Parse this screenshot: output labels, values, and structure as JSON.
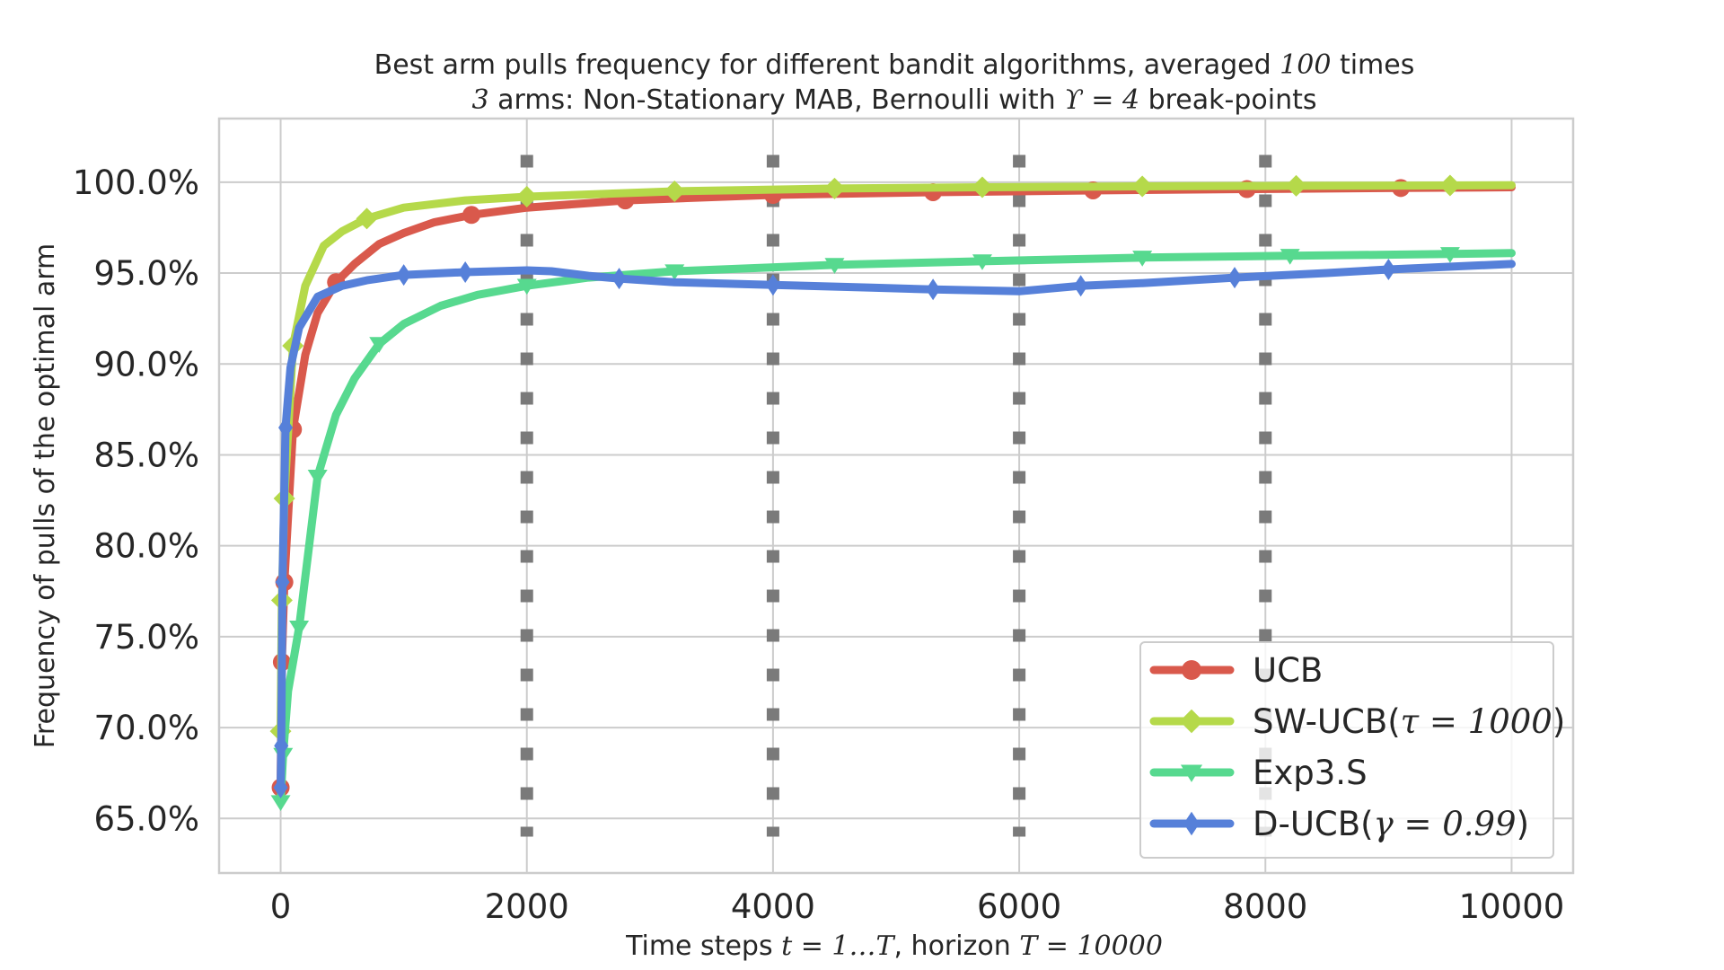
{
  "chart_data": {
    "type": "line",
    "title_line1": {
      "before": "Best arm pulls frequency for different bandit algorithms, averaged ",
      "math": "100",
      "after": " times"
    },
    "title_line2": {
      "math1": "3",
      "middle": " arms: Non-Stationary MAB, Bernoulli with ",
      "math2": "ϒ = 4",
      "after": " break-points"
    },
    "xlabel": {
      "before": "Time steps ",
      "math1": "t = 1…T",
      "middle": ", horizon ",
      "math2": "T = 10000"
    },
    "ylabel": "Frequency of pulls of the optimal arm",
    "xlim": [
      -500,
      10500
    ],
    "ylim": [
      62.0,
      103.5
    ],
    "x_ticks": [
      0,
      2000,
      4000,
      6000,
      8000,
      10000
    ],
    "x_tick_labels": [
      "0",
      "2000",
      "4000",
      "6000",
      "8000",
      "10000"
    ],
    "y_ticks": [
      65,
      70,
      75,
      80,
      85,
      90,
      95,
      100
    ],
    "y_tick_labels": [
      "65.0%",
      "70.0%",
      "75.0%",
      "80.0%",
      "85.0%",
      "90.0%",
      "95.0%",
      "100.0%"
    ],
    "grid": true,
    "legend_position": "lower-right",
    "break_points": [
      2000,
      4000,
      6000,
      8000
    ],
    "series": [
      {
        "name": "UCB",
        "name_math": "",
        "name_after": "",
        "color": "#d9594c",
        "marker": "circle",
        "points": [
          [
            0,
            66.7
          ],
          [
            10,
            73.6
          ],
          [
            30,
            78.0
          ],
          [
            100,
            86.4
          ],
          [
            200,
            90.5
          ],
          [
            300,
            92.8
          ],
          [
            450,
            94.5
          ],
          [
            600,
            95.5
          ],
          [
            800,
            96.6
          ],
          [
            1000,
            97.2
          ],
          [
            1250,
            97.8
          ],
          [
            1550,
            98.2
          ],
          [
            2000,
            98.6
          ],
          [
            2800,
            99.0
          ],
          [
            4000,
            99.3
          ],
          [
            5300,
            99.45
          ],
          [
            6600,
            99.55
          ],
          [
            7850,
            99.62
          ],
          [
            9100,
            99.68
          ],
          [
            10000,
            99.72
          ]
        ],
        "markers": [
          [
            0,
            66.7
          ],
          [
            10,
            73.6
          ],
          [
            30,
            78.0
          ],
          [
            100,
            86.4
          ],
          [
            450,
            94.5
          ],
          [
            1550,
            98.2
          ],
          [
            2800,
            99.0
          ],
          [
            4000,
            99.3
          ],
          [
            5300,
            99.45
          ],
          [
            6600,
            99.55
          ],
          [
            7850,
            99.62
          ],
          [
            9100,
            99.68
          ]
        ]
      },
      {
        "name": "SW-UCB(",
        "name_math": "τ = 1000",
        "name_after": ")",
        "color": "#b5d94a",
        "marker": "diamond",
        "points": [
          [
            0,
            69.8
          ],
          [
            10,
            77.0
          ],
          [
            30,
            82.6
          ],
          [
            100,
            91.0
          ],
          [
            200,
            94.3
          ],
          [
            350,
            96.5
          ],
          [
            500,
            97.3
          ],
          [
            700,
            98.0
          ],
          [
            1000,
            98.6
          ],
          [
            1500,
            99.0
          ],
          [
            2000,
            99.2
          ],
          [
            3200,
            99.5
          ],
          [
            4500,
            99.65
          ],
          [
            5700,
            99.72
          ],
          [
            7000,
            99.77
          ],
          [
            8250,
            99.8
          ],
          [
            9500,
            99.82
          ],
          [
            10000,
            99.83
          ]
        ],
        "markers": [
          [
            0,
            69.8
          ],
          [
            10,
            77.0
          ],
          [
            30,
            82.6
          ],
          [
            100,
            91.0
          ],
          [
            700,
            98.0
          ],
          [
            2000,
            99.2
          ],
          [
            3200,
            99.5
          ],
          [
            4500,
            99.65
          ],
          [
            5700,
            99.72
          ],
          [
            7000,
            99.77
          ],
          [
            8250,
            99.8
          ],
          [
            9500,
            99.82
          ]
        ]
      },
      {
        "name": "Exp3.S",
        "name_math": "",
        "name_after": "",
        "color": "#57d98f",
        "marker": "triangle-down",
        "points": [
          [
            0,
            65.9
          ],
          [
            20,
            68.5
          ],
          [
            60,
            72.0
          ],
          [
            150,
            75.5
          ],
          [
            300,
            83.8
          ],
          [
            450,
            87.2
          ],
          [
            600,
            89.2
          ],
          [
            800,
            91.1
          ],
          [
            1000,
            92.2
          ],
          [
            1300,
            93.2
          ],
          [
            1600,
            93.8
          ],
          [
            2000,
            94.3
          ],
          [
            2500,
            94.75
          ],
          [
            3200,
            95.1
          ],
          [
            4500,
            95.45
          ],
          [
            5700,
            95.65
          ],
          [
            7000,
            95.85
          ],
          [
            8200,
            95.95
          ],
          [
            9500,
            96.05
          ],
          [
            10000,
            96.1
          ]
        ],
        "markers": [
          [
            0,
            65.9
          ],
          [
            20,
            68.5
          ],
          [
            150,
            75.5
          ],
          [
            300,
            83.8
          ],
          [
            800,
            91.1
          ],
          [
            2000,
            94.3
          ],
          [
            3200,
            95.1
          ],
          [
            4500,
            95.45
          ],
          [
            5700,
            95.65
          ],
          [
            7000,
            95.85
          ],
          [
            8200,
            95.95
          ],
          [
            9500,
            96.05
          ]
        ]
      },
      {
        "name": "D-UCB(",
        "name_math": "γ = 0.99",
        "name_after": ")",
        "color": "#5680d9",
        "marker": "thin-diamond",
        "points": [
          [
            0,
            66.7
          ],
          [
            5,
            69.0
          ],
          [
            15,
            78.0
          ],
          [
            40,
            86.5
          ],
          [
            80,
            89.8
          ],
          [
            150,
            92.0
          ],
          [
            300,
            93.7
          ],
          [
            500,
            94.3
          ],
          [
            700,
            94.6
          ],
          [
            1000,
            94.9
          ],
          [
            1500,
            95.05
          ],
          [
            2000,
            95.15
          ],
          [
            2200,
            95.1
          ],
          [
            2500,
            94.85
          ],
          [
            2750,
            94.7
          ],
          [
            3200,
            94.5
          ],
          [
            4000,
            94.35
          ],
          [
            4800,
            94.2
          ],
          [
            5300,
            94.1
          ],
          [
            6000,
            94.0
          ],
          [
            6500,
            94.3
          ],
          [
            7000,
            94.45
          ],
          [
            7750,
            94.75
          ],
          [
            8500,
            95.0
          ],
          [
            9000,
            95.2
          ],
          [
            10000,
            95.5
          ]
        ],
        "markers": [
          [
            0,
            66.7
          ],
          [
            5,
            69.0
          ],
          [
            15,
            78.0
          ],
          [
            40,
            86.5
          ],
          [
            1000,
            94.9
          ],
          [
            1500,
            95.05
          ],
          [
            2750,
            94.7
          ],
          [
            4000,
            94.35
          ],
          [
            5300,
            94.1
          ],
          [
            6500,
            94.3
          ],
          [
            7750,
            94.75
          ],
          [
            9000,
            95.2
          ]
        ]
      }
    ]
  }
}
